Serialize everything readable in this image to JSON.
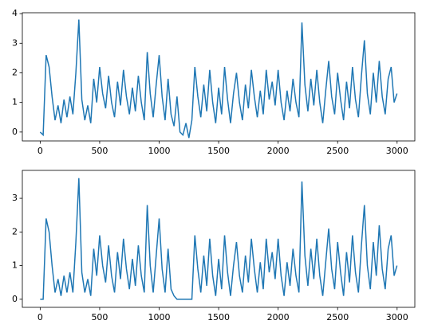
{
  "chart_data": [
    {
      "type": "line",
      "x": [
        0,
        25,
        50,
        75,
        100,
        125,
        150,
        175,
        200,
        225,
        250,
        275,
        300,
        325,
        350,
        375,
        400,
        425,
        450,
        475,
        500,
        525,
        550,
        575,
        600,
        625,
        650,
        675,
        700,
        725,
        750,
        775,
        800,
        825,
        850,
        875,
        900,
        925,
        950,
        975,
        1000,
        1025,
        1050,
        1075,
        1100,
        1125,
        1150,
        1175,
        1200,
        1225,
        1250,
        1275,
        1300,
        1325,
        1350,
        1375,
        1400,
        1425,
        1450,
        1475,
        1500,
        1525,
        1550,
        1575,
        1600,
        1625,
        1650,
        1675,
        1700,
        1725,
        1750,
        1775,
        1800,
        1825,
        1850,
        1875,
        1900,
        1925,
        1950,
        1975,
        2000,
        2025,
        2050,
        2075,
        2100,
        2125,
        2150,
        2175,
        2200,
        2225,
        2250,
        2275,
        2300,
        2325,
        2350,
        2375,
        2400,
        2425,
        2450,
        2475,
        2500,
        2525,
        2550,
        2575,
        2600,
        2625,
        2650,
        2675,
        2700,
        2725,
        2750,
        2775,
        2800,
        2825,
        2850,
        2875,
        2900,
        2925,
        2950,
        2975,
        2999
      ],
      "series": [
        {
          "color": "#1f77b4",
          "values": [
            0.0,
            -0.1,
            2.6,
            2.2,
            1.2,
            0.4,
            0.9,
            0.3,
            1.1,
            0.5,
            1.2,
            0.6,
            2.0,
            3.8,
            1.1,
            0.4,
            0.9,
            0.3,
            1.8,
            1.0,
            2.2,
            1.3,
            0.8,
            1.9,
            1.0,
            0.5,
            1.7,
            0.9,
            2.1,
            1.2,
            0.6,
            1.5,
            0.7,
            1.9,
            1.0,
            0.4,
            2.7,
            1.3,
            0.5,
            1.6,
            2.6,
            1.2,
            0.4,
            1.8,
            0.6,
            0.2,
            1.2,
            0.0,
            -0.1,
            0.3,
            -0.2,
            0.4,
            2.2,
            1.2,
            0.5,
            1.6,
            0.7,
            2.1,
            1.0,
            0.3,
            1.5,
            0.6,
            2.2,
            1.1,
            0.3,
            1.3,
            2.0,
            1.0,
            0.4,
            1.6,
            0.8,
            2.1,
            1.2,
            0.5,
            1.4,
            0.6,
            2.1,
            1.1,
            1.7,
            0.9,
            2.1,
            1.0,
            0.4,
            1.4,
            0.7,
            1.8,
            1.0,
            0.5,
            3.7,
            1.6,
            0.7,
            1.8,
            0.9,
            2.1,
            1.0,
            0.3,
            1.4,
            2.4,
            1.2,
            0.6,
            2.0,
            1.1,
            0.4,
            1.7,
            0.8,
            2.2,
            1.1,
            0.5,
            1.9,
            3.1,
            1.3,
            0.6,
            2.0,
            1.0,
            2.4,
            1.2,
            0.6,
            1.8,
            2.2,
            1.0,
            1.3
          ]
        }
      ],
      "xlim": [
        -150,
        3149
      ],
      "ylim": [
        -0.3,
        4.03
      ],
      "xticks": [
        0,
        500,
        1000,
        1500,
        2000,
        2500,
        3000
      ],
      "yticks": [
        0,
        1,
        2,
        3,
        4
      ]
    },
    {
      "type": "line",
      "x": [
        0,
        25,
        50,
        75,
        100,
        125,
        150,
        175,
        200,
        225,
        250,
        275,
        300,
        325,
        350,
        375,
        400,
        425,
        450,
        475,
        500,
        525,
        550,
        575,
        600,
        625,
        650,
        675,
        700,
        725,
        750,
        775,
        800,
        825,
        850,
        875,
        900,
        925,
        950,
        975,
        1000,
        1025,
        1050,
        1075,
        1100,
        1125,
        1150,
        1175,
        1200,
        1225,
        1250,
        1275,
        1300,
        1325,
        1350,
        1375,
        1400,
        1425,
        1450,
        1475,
        1500,
        1525,
        1550,
        1575,
        1600,
        1625,
        1650,
        1675,
        1700,
        1725,
        1750,
        1775,
        1800,
        1825,
        1850,
        1875,
        1900,
        1925,
        1950,
        1975,
        2000,
        2025,
        2050,
        2075,
        2100,
        2125,
        2150,
        2175,
        2200,
        2225,
        2250,
        2275,
        2300,
        2325,
        2350,
        2375,
        2400,
        2425,
        2450,
        2475,
        2500,
        2525,
        2550,
        2575,
        2600,
        2625,
        2650,
        2675,
        2700,
        2725,
        2750,
        2775,
        2800,
        2825,
        2850,
        2875,
        2900,
        2925,
        2950,
        2975,
        2999
      ],
      "series": [
        {
          "color": "#1f77b4",
          "values": [
            0,
            0,
            2.4,
            2.0,
            1.0,
            0.2,
            0.6,
            0.1,
            0.7,
            0.2,
            0.8,
            0.2,
            1.7,
            3.6,
            0.8,
            0.2,
            0.6,
            0.1,
            1.5,
            0.7,
            1.9,
            1.0,
            0.5,
            1.6,
            0.7,
            0.2,
            1.4,
            0.6,
            1.8,
            0.9,
            0.3,
            1.2,
            0.4,
            1.6,
            0.7,
            0.2,
            2.8,
            1.0,
            0.2,
            1.3,
            2.4,
            0.9,
            0.2,
            1.5,
            0.3,
            0.1,
            0,
            0,
            0,
            0,
            0,
            0,
            1.9,
            0.9,
            0.2,
            1.3,
            0.4,
            1.8,
            0.7,
            0.1,
            1.2,
            0.3,
            1.9,
            0.8,
            0.1,
            1.0,
            1.7,
            0.7,
            0.2,
            1.3,
            0.5,
            1.8,
            0.9,
            0.2,
            1.1,
            0.3,
            1.8,
            0.8,
            1.4,
            0.6,
            1.8,
            0.7,
            0.1,
            1.1,
            0.4,
            1.5,
            0.7,
            0.2,
            3.5,
            1.3,
            0.4,
            1.5,
            0.6,
            1.8,
            0.7,
            0.1,
            1.1,
            2.1,
            0.9,
            0.3,
            1.7,
            0.8,
            0.1,
            1.4,
            0.5,
            1.9,
            0.8,
            0.2,
            1.6,
            2.8,
            1.0,
            0.3,
            1.7,
            0.7,
            2.2,
            0.9,
            0.3,
            1.5,
            1.9,
            0.7,
            1.0
          ]
        }
      ],
      "xlim": [
        -150,
        3149
      ],
      "ylim": [
        -0.24,
        3.83
      ],
      "xticks": [
        0,
        500,
        1000,
        1500,
        2000,
        2500,
        3000
      ],
      "yticks": [
        0,
        1,
        2,
        3
      ]
    }
  ]
}
